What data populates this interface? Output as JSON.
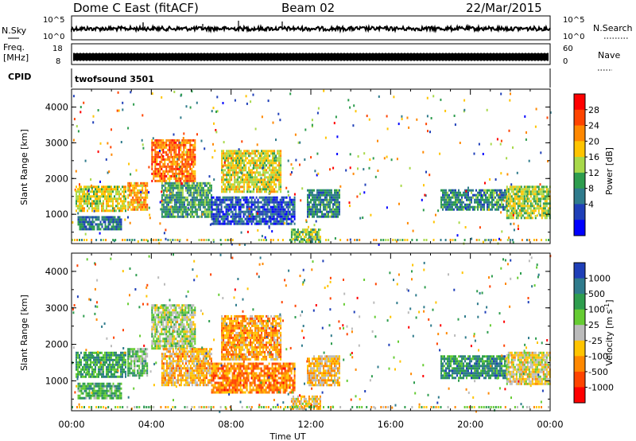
{
  "header": {
    "radar_title": "Dome C East (fitACF)",
    "beam": "Beam 02",
    "date": "22/Mar/2015"
  },
  "strip_panels": {
    "nsky": {
      "label": "N.Sky",
      "ticks": [
        "10^5",
        "10^0"
      ]
    },
    "nsearch": {
      "label": "N.Search",
      "ticks": [
        "10^5",
        "10^0"
      ]
    },
    "freq": {
      "label_line1": "Freq.",
      "label_line2": "[MHz]",
      "ticks": [
        "18",
        "8"
      ]
    },
    "nave": {
      "label": "Nave",
      "ticks": [
        "60",
        "0"
      ]
    },
    "cpid": {
      "label": "CPID",
      "value": "twofsound 3501"
    }
  },
  "chart_data": [
    {
      "type": "heatmap",
      "title": "",
      "parameter": "Power [dB]",
      "ylabel": "Slant Range [km]",
      "xlabel": "",
      "ylim": [
        180,
        4500
      ],
      "yticks": [
        "1000",
        "2000",
        "3000",
        "4000"
      ],
      "x_ticks": [
        "00:00",
        "04:00",
        "08:00",
        "12:00",
        "16:00",
        "20:00",
        "00:00"
      ],
      "colorbar": {
        "label": "Power [dB]",
        "tick_labels": [
          "28",
          "24",
          "20",
          "16",
          "12",
          "8",
          "4"
        ],
        "colors": [
          "#ff0000",
          "#ff4400",
          "#ff8800",
          "#ffc400",
          "#a8d94a",
          "#2e9d4e",
          "#2f7b8c",
          "#1f3fb8",
          "#0000ff"
        ]
      },
      "regions": [
        {
          "t": [
            0.2,
            2.7
          ],
          "r": [
            1100,
            1800
          ],
          "level": 0.45
        },
        {
          "t": [
            0.3,
            2.5
          ],
          "r": [
            550,
            950
          ],
          "level": 0.75
        },
        {
          "t": [
            2.8,
            3.8
          ],
          "r": [
            1150,
            1900
          ],
          "level": 0.3
        },
        {
          "t": [
            4.0,
            6.2
          ],
          "r": [
            1900,
            3100
          ],
          "level": 0.2
        },
        {
          "t": [
            4.5,
            7.0
          ],
          "r": [
            900,
            1900
          ],
          "level": 0.65
        },
        {
          "t": [
            7.0,
            11.2
          ],
          "r": [
            700,
            1500
          ],
          "level": 0.85
        },
        {
          "t": [
            7.5,
            10.5
          ],
          "r": [
            1600,
            2800
          ],
          "level": 0.45
        },
        {
          "t": [
            11.8,
            13.4
          ],
          "r": [
            900,
            1700
          ],
          "level": 0.7
        },
        {
          "t": [
            11.0,
            12.5
          ],
          "r": [
            250,
            600
          ],
          "level": 0.55
        },
        {
          "t": [
            18.5,
            21.8
          ],
          "r": [
            1100,
            1700
          ],
          "level": 0.7
        },
        {
          "t": [
            21.8,
            24.0
          ],
          "r": [
            900,
            1800
          ],
          "level": 0.5
        }
      ]
    },
    {
      "type": "heatmap",
      "title": "",
      "parameter": "Velocity [m s^-1]",
      "ylabel": "Slant Range [km]",
      "xlabel": "Time UT",
      "ylim": [
        180,
        4500
      ],
      "yticks": [
        "1000",
        "2000",
        "3000",
        "4000"
      ],
      "x_ticks": [
        "00:00",
        "04:00",
        "08:00",
        "12:00",
        "16:00",
        "20:00",
        "00:00"
      ],
      "colorbar": {
        "label": "Velocity [m s^-1]",
        "tick_labels": [
          "1000",
          "500",
          "100",
          "25",
          "-25",
          "-100",
          "-500",
          "-1000"
        ],
        "colors": [
          "#1f3fb8",
          "#2f7b8c",
          "#2e9d4e",
          "#66cc33",
          "#bbbbbb",
          "#ffc400",
          "#ff8800",
          "#ff4400",
          "#ff0000"
        ]
      },
      "regions": [
        {
          "t": [
            0.2,
            2.7
          ],
          "r": [
            1100,
            1800
          ],
          "level": 0.25
        },
        {
          "t": [
            0.3,
            2.5
          ],
          "r": [
            550,
            950
          ],
          "level": 0.3
        },
        {
          "t": [
            2.8,
            3.8
          ],
          "r": [
            1150,
            1900
          ],
          "level": 0.35
        },
        {
          "t": [
            4.0,
            6.2
          ],
          "r": [
            1900,
            3100
          ],
          "level": 0.45
        },
        {
          "t": [
            4.5,
            7.0
          ],
          "r": [
            900,
            1900
          ],
          "level": 0.65
        },
        {
          "t": [
            7.0,
            11.2
          ],
          "r": [
            700,
            1500
          ],
          "level": 0.78
        },
        {
          "t": [
            7.5,
            10.5
          ],
          "r": [
            1600,
            2800
          ],
          "level": 0.7
        },
        {
          "t": [
            11.8,
            13.4
          ],
          "r": [
            900,
            1700
          ],
          "level": 0.62
        },
        {
          "t": [
            11.0,
            12.5
          ],
          "r": [
            250,
            600
          ],
          "level": 0.6
        },
        {
          "t": [
            18.5,
            21.8
          ],
          "r": [
            1100,
            1700
          ],
          "level": 0.2
        },
        {
          "t": [
            21.8,
            24.0
          ],
          "r": [
            900,
            1800
          ],
          "level": 0.55
        }
      ]
    }
  ]
}
